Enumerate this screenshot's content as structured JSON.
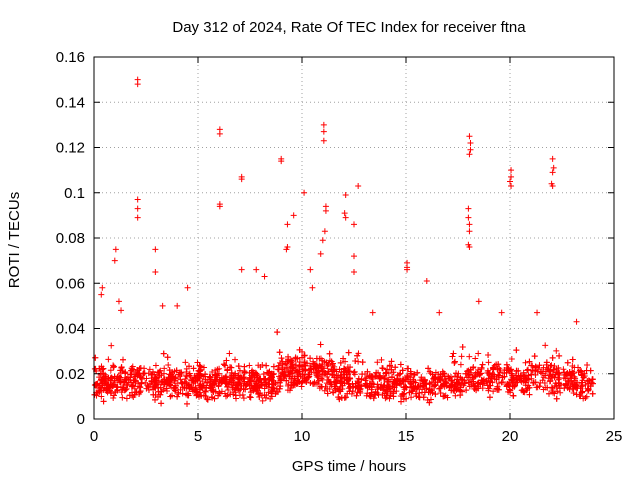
{
  "chart_data": {
    "type": "scatter",
    "title": "Day 312 of 2024, Rate Of TEC Index for receiver ftna",
    "xlabel": "GPS time / hours",
    "ylabel": "ROTI / TECUs",
    "xlim": [
      0,
      25
    ],
    "ylim": [
      0,
      0.16
    ],
    "x_ticks": [
      "0",
      "5",
      "10",
      "15",
      "20",
      "25"
    ],
    "y_ticks": [
      "0",
      "0.02",
      "0.04",
      "0.06",
      "0.08",
      "0.1",
      "0.12",
      "0.14",
      "0.16"
    ],
    "grid": true,
    "marker": "+",
    "color": "#ff0000",
    "series": [
      {
        "name": "ROTI",
        "outliers": [
          [
            2.1,
            0.15
          ],
          [
            2.1,
            0.148
          ],
          [
            2.1,
            0.097
          ],
          [
            2.1,
            0.093
          ],
          [
            2.1,
            0.089
          ],
          [
            1.05,
            0.075
          ],
          [
            1.0,
            0.07
          ],
          [
            1.2,
            0.052
          ],
          [
            2.95,
            0.075
          ],
          [
            2.95,
            0.065
          ],
          [
            6.05,
            0.128
          ],
          [
            6.05,
            0.126
          ],
          [
            6.05,
            0.095
          ],
          [
            6.05,
            0.094
          ],
          [
            7.1,
            0.107
          ],
          [
            7.1,
            0.106
          ],
          [
            7.1,
            0.066
          ],
          [
            9.0,
            0.115
          ],
          [
            9.0,
            0.114
          ],
          [
            10.1,
            0.1
          ],
          [
            9.6,
            0.09
          ],
          [
            9.3,
            0.086
          ],
          [
            9.3,
            0.076
          ],
          [
            9.25,
            0.075
          ],
          [
            11.05,
            0.13
          ],
          [
            11.05,
            0.127
          ],
          [
            11.05,
            0.123
          ],
          [
            11.15,
            0.094
          ],
          [
            11.15,
            0.092
          ],
          [
            11.1,
            0.083
          ],
          [
            11.0,
            0.079
          ],
          [
            10.9,
            0.073
          ],
          [
            12.1,
            0.099
          ],
          [
            12.05,
            0.091
          ],
          [
            12.1,
            0.089
          ],
          [
            12.7,
            0.103
          ],
          [
            12.5,
            0.086
          ],
          [
            12.5,
            0.072
          ],
          [
            12.5,
            0.065
          ],
          [
            15.05,
            0.069
          ],
          [
            15.05,
            0.067
          ],
          [
            15.05,
            0.066
          ],
          [
            16.0,
            0.061
          ],
          [
            18.05,
            0.125
          ],
          [
            18.1,
            0.122
          ],
          [
            18.1,
            0.119
          ],
          [
            18.05,
            0.117
          ],
          [
            18.0,
            0.093
          ],
          [
            18.0,
            0.089
          ],
          [
            18.05,
            0.086
          ],
          [
            18.05,
            0.083
          ],
          [
            18.0,
            0.077
          ],
          [
            18.05,
            0.076
          ],
          [
            18.5,
            0.052
          ],
          [
            20.05,
            0.11
          ],
          [
            20.05,
            0.107
          ],
          [
            20.0,
            0.105
          ],
          [
            20.05,
            0.103
          ],
          [
            22.05,
            0.115
          ],
          [
            22.1,
            0.111
          ],
          [
            22.05,
            0.109
          ],
          [
            22.0,
            0.104
          ],
          [
            22.05,
            0.103
          ],
          [
            4.5,
            0.058
          ],
          [
            7.8,
            0.066
          ],
          [
            8.2,
            0.063
          ],
          [
            10.4,
            0.066
          ],
          [
            10.5,
            0.058
          ],
          [
            0.4,
            0.058
          ],
          [
            0.35,
            0.055
          ],
          [
            1.3,
            0.048
          ],
          [
            3.3,
            0.05
          ],
          [
            4.0,
            0.05
          ],
          [
            13.4,
            0.047
          ],
          [
            16.6,
            0.047
          ],
          [
            19.6,
            0.047
          ],
          [
            21.3,
            0.047
          ],
          [
            23.2,
            0.043
          ]
        ]
      }
    ]
  }
}
